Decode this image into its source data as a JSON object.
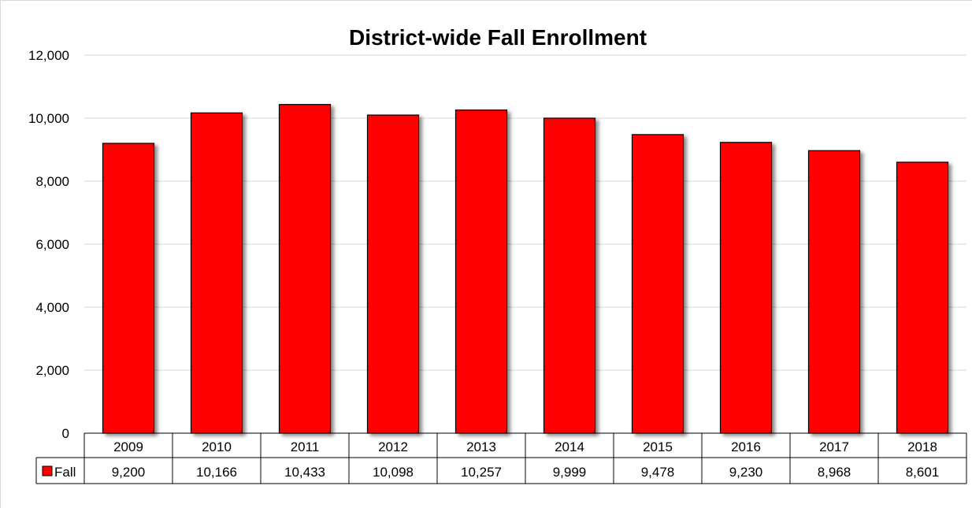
{
  "chart_data": {
    "type": "bar",
    "title": "District-wide Fall Enrollment",
    "xlabel": "",
    "ylabel": "",
    "categories": [
      "2009",
      "2010",
      "2011",
      "2012",
      "2013",
      "2014",
      "2015",
      "2016",
      "2017",
      "2018"
    ],
    "series": [
      {
        "name": "Fall",
        "color": "#ff0000",
        "values": [
          9200,
          10166,
          10433,
          10098,
          10257,
          9999,
          9478,
          9230,
          8968,
          8601
        ],
        "labels": [
          "9,200",
          "10,166",
          "10,433",
          "10,098",
          "10,257",
          "9,999",
          "9,478",
          "9,230",
          "8,968",
          "8,601"
        ]
      }
    ],
    "ylim": [
      0,
      12000
    ],
    "yticks": [
      0,
      2000,
      4000,
      6000,
      8000,
      10000,
      12000
    ],
    "ytick_labels": [
      "0",
      "2,000",
      "4,000",
      "6,000",
      "8,000",
      "10,000",
      "12,000"
    ],
    "grid": true,
    "legend": "data-table",
    "data_table": true
  }
}
